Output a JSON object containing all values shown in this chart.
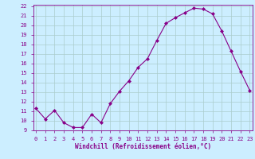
{
  "x": [
    0,
    1,
    2,
    3,
    4,
    5,
    6,
    7,
    8,
    9,
    10,
    11,
    12,
    13,
    14,
    15,
    16,
    17,
    18,
    19,
    20,
    21,
    22,
    23
  ],
  "y": [
    11.3,
    10.2,
    11.1,
    9.8,
    9.3,
    9.3,
    10.7,
    9.8,
    11.8,
    13.1,
    14.2,
    15.6,
    16.5,
    18.4,
    20.2,
    20.8,
    21.3,
    21.8,
    21.7,
    21.2,
    19.4,
    17.3,
    15.2,
    13.2
  ],
  "line_color": "#880088",
  "marker": "D",
  "marker_size": 2.0,
  "bg_color": "#cceeff",
  "grid_color": "#aacccc",
  "xlabel": "Windchill (Refroidissement éolien,°C)",
  "ylim_min": 9,
  "ylim_max": 22,
  "xlim_min": 0,
  "xlim_max": 23,
  "yticks": [
    9,
    10,
    11,
    12,
    13,
    14,
    15,
    16,
    17,
    18,
    19,
    20,
    21,
    22
  ],
  "xticks": [
    0,
    1,
    2,
    3,
    4,
    5,
    6,
    7,
    8,
    9,
    10,
    11,
    12,
    13,
    14,
    15,
    16,
    17,
    18,
    19,
    20,
    21,
    22,
    23
  ],
  "tick_fontsize": 5.0,
  "xlabel_fontsize": 5.5,
  "tick_color": "#880088",
  "font": "monospace",
  "linewidth": 0.8
}
